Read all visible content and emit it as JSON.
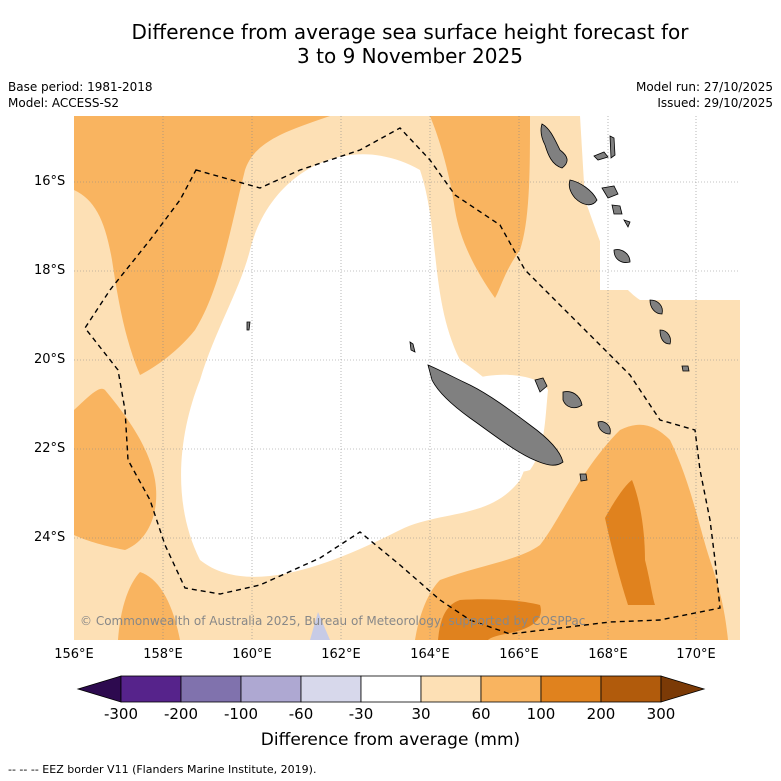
{
  "title_line1": "Difference from average sea surface height forecast for",
  "title_line2": "3 to 9 November 2025",
  "meta_left": [
    "Base period: 1981-2018",
    "Model: ACCESS-S2"
  ],
  "meta_right": [
    "Model run: 27/10/2025",
    "Issued: 29/10/2025"
  ],
  "lat_labels": [
    "16°S",
    "18°S",
    "20°S",
    "22°S",
    "24°S"
  ],
  "lon_labels": [
    "156°E",
    "158°E",
    "160°E",
    "162°E",
    "164°E",
    "166°E",
    "168°E",
    "170°E"
  ],
  "copyright": "© Commonwealth of Australia 2025, Bureau of Meteorology, supported by COSPPac",
  "colorbar": {
    "ticks": [
      "-300",
      "-200",
      "-100",
      "-60",
      "-30",
      "30",
      "60",
      "100",
      "200",
      "300"
    ],
    "colors": {
      "below": "#2d0a4f",
      "bins": [
        "#56238b",
        "#8072ad",
        "#aea8d2",
        "#d7d8eb",
        "#ffffff",
        "#fde0b5",
        "#f9b460",
        "#e0821e",
        "#b15b0c"
      ],
      "above": "#7b3a06"
    },
    "title": "Difference from average (mm)"
  },
  "footnote": "--  --  -- EEZ border V11 (Flanders Marine Institute, 2019).",
  "map_colors": {
    "land": "#808080",
    "light": "#fde0b5",
    "mid": "#f9b460",
    "dark": "#e0821e",
    "grid": "#888888"
  }
}
